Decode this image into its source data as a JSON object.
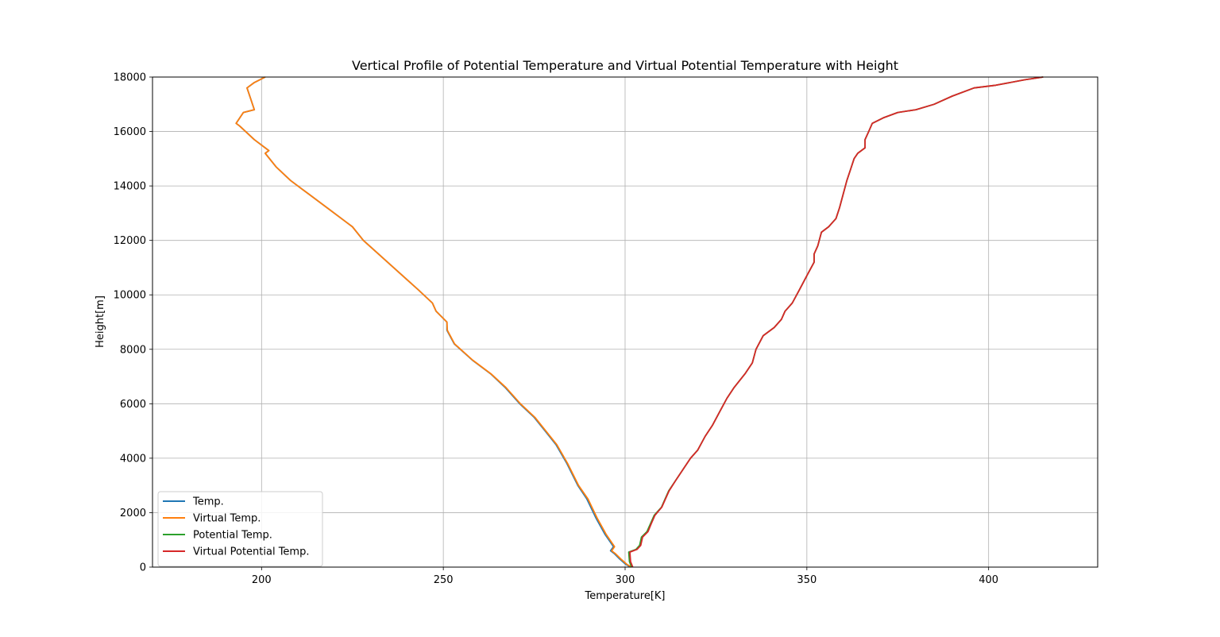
{
  "chart_data": {
    "type": "line",
    "title": "Vertical Profile of Potential Temperature and Virtual Potential Temperature with Height",
    "xlabel": "Temperature[K]",
    "ylabel": "Height[m]",
    "xlim": [
      170,
      430
    ],
    "ylim": [
      0,
      18000
    ],
    "xticks": [
      200,
      250,
      300,
      350,
      400
    ],
    "yticks": [
      0,
      2000,
      4000,
      6000,
      8000,
      10000,
      12000,
      14000,
      16000,
      18000
    ],
    "grid": true,
    "legend_position": "lower-left",
    "series": [
      {
        "name": "Temp.",
        "color": "#1f77b4",
        "points": [
          [
            301.5,
            0
          ],
          [
            300.2,
            100
          ],
          [
            298.5,
            300
          ],
          [
            297,
            500
          ],
          [
            296,
            600
          ],
          [
            296.8,
            750
          ],
          [
            294.5,
            1200
          ],
          [
            292,
            1800
          ],
          [
            289.5,
            2500
          ],
          [
            287,
            3000
          ],
          [
            284,
            3800
          ],
          [
            281,
            4500
          ],
          [
            278,
            5000
          ],
          [
            275,
            5500
          ],
          [
            271,
            6000
          ],
          [
            267,
            6600
          ],
          [
            263,
            7100
          ],
          [
            258,
            7600
          ],
          [
            253,
            8200
          ],
          [
            251,
            8700
          ],
          [
            251,
            9000
          ],
          [
            248,
            9400
          ],
          [
            247,
            9700
          ],
          [
            243,
            10200
          ],
          [
            238,
            10800
          ],
          [
            233,
            11400
          ],
          [
            228,
            12000
          ],
          [
            225,
            12500
          ],
          [
            223,
            12700
          ],
          [
            218,
            13200
          ],
          [
            213,
            13700
          ],
          [
            208,
            14200
          ],
          [
            204,
            14700
          ],
          [
            201,
            15200
          ],
          [
            202,
            15300
          ],
          [
            198,
            15700
          ],
          [
            194,
            16200
          ],
          [
            193,
            16300
          ],
          [
            195,
            16700
          ],
          [
            198,
            16800
          ],
          [
            197,
            17200
          ],
          [
            196,
            17600
          ],
          [
            198,
            17800
          ],
          [
            201,
            18000
          ]
        ]
      },
      {
        "name": "Virtual Temp.",
        "color": "#ff7f0e",
        "points": [
          [
            301.8,
            0
          ],
          [
            300.5,
            100
          ],
          [
            298.8,
            300
          ],
          [
            297.3,
            500
          ],
          [
            296.3,
            600
          ],
          [
            297.1,
            750
          ],
          [
            294.8,
            1200
          ],
          [
            292.3,
            1800
          ],
          [
            289.8,
            2500
          ],
          [
            287.2,
            3000
          ],
          [
            284.2,
            3800
          ],
          [
            281.2,
            4500
          ],
          [
            278.2,
            5000
          ],
          [
            275.2,
            5500
          ],
          [
            271.2,
            6000
          ],
          [
            267.2,
            6600
          ],
          [
            263.1,
            7100
          ],
          [
            258.1,
            7600
          ],
          [
            253.1,
            8200
          ],
          [
            251.1,
            8700
          ],
          [
            251,
            9000
          ],
          [
            248,
            9400
          ],
          [
            247,
            9700
          ],
          [
            243,
            10200
          ],
          [
            238,
            10800
          ],
          [
            233,
            11400
          ],
          [
            228,
            12000
          ],
          [
            225,
            12500
          ],
          [
            223,
            12700
          ],
          [
            218,
            13200
          ],
          [
            213,
            13700
          ],
          [
            208,
            14200
          ],
          [
            204,
            14700
          ],
          [
            201,
            15200
          ],
          [
            202,
            15300
          ],
          [
            198,
            15700
          ],
          [
            194,
            16200
          ],
          [
            193,
            16300
          ],
          [
            195,
            16700
          ],
          [
            198,
            16800
          ],
          [
            197,
            17200
          ],
          [
            196,
            17600
          ],
          [
            198,
            17800
          ],
          [
            201,
            18000
          ]
        ]
      },
      {
        "name": "Potential Temp.",
        "color": "#2ca02c",
        "points": [
          [
            301.8,
            0
          ],
          [
            301.2,
            200
          ],
          [
            301,
            550
          ],
          [
            303,
            650
          ],
          [
            304,
            800
          ],
          [
            304.5,
            1100
          ],
          [
            306,
            1300
          ],
          [
            307,
            1600
          ],
          [
            308,
            1900
          ],
          [
            310,
            2200
          ],
          [
            311,
            2500
          ],
          [
            312,
            2800
          ],
          [
            314,
            3200
          ],
          [
            316,
            3600
          ],
          [
            318,
            4000
          ],
          [
            320,
            4300
          ],
          [
            322,
            4800
          ],
          [
            324,
            5200
          ],
          [
            326,
            5700
          ],
          [
            328,
            6200
          ],
          [
            330,
            6600
          ],
          [
            333,
            7100
          ],
          [
            335,
            7500
          ],
          [
            336,
            8000
          ],
          [
            338,
            8500
          ],
          [
            341,
            8800
          ],
          [
            343,
            9100
          ],
          [
            344,
            9400
          ],
          [
            346,
            9700
          ],
          [
            348,
            10200
          ],
          [
            350,
            10700
          ],
          [
            352,
            11200
          ],
          [
            352,
            11500
          ],
          [
            353,
            11800
          ],
          [
            354,
            12300
          ],
          [
            356,
            12500
          ],
          [
            358,
            12800
          ],
          [
            359,
            13200
          ],
          [
            360,
            13700
          ],
          [
            361,
            14200
          ],
          [
            362,
            14600
          ],
          [
            363,
            15000
          ],
          [
            364,
            15200
          ],
          [
            366,
            15400
          ],
          [
            366,
            15700
          ],
          [
            367,
            16000
          ],
          [
            368,
            16300
          ],
          [
            371,
            16500
          ],
          [
            375,
            16700
          ],
          [
            380,
            16800
          ],
          [
            385,
            17000
          ],
          [
            390,
            17300
          ],
          [
            396,
            17600
          ],
          [
            402,
            17700
          ],
          [
            410,
            17900
          ],
          [
            415,
            18000
          ]
        ]
      },
      {
        "name": "Virtual Potential Temp.",
        "color": "#d62728",
        "points": [
          [
            302.1,
            0
          ],
          [
            301.5,
            200
          ],
          [
            301.3,
            550
          ],
          [
            303.3,
            650
          ],
          [
            304.3,
            800
          ],
          [
            304.8,
            1100
          ],
          [
            306.3,
            1300
          ],
          [
            307.2,
            1600
          ],
          [
            308.2,
            1900
          ],
          [
            310.1,
            2200
          ],
          [
            311.1,
            2500
          ],
          [
            312.1,
            2800
          ],
          [
            314,
            3200
          ],
          [
            316,
            3600
          ],
          [
            318,
            4000
          ],
          [
            320,
            4300
          ],
          [
            322,
            4800
          ],
          [
            324,
            5200
          ],
          [
            326,
            5700
          ],
          [
            328,
            6200
          ],
          [
            330,
            6600
          ],
          [
            333,
            7100
          ],
          [
            335,
            7500
          ],
          [
            336,
            8000
          ],
          [
            338,
            8500
          ],
          [
            341,
            8800
          ],
          [
            343,
            9100
          ],
          [
            344,
            9400
          ],
          [
            346,
            9700
          ],
          [
            348,
            10200
          ],
          [
            350,
            10700
          ],
          [
            352,
            11200
          ],
          [
            352,
            11500
          ],
          [
            353,
            11800
          ],
          [
            354,
            12300
          ],
          [
            356,
            12500
          ],
          [
            358,
            12800
          ],
          [
            359,
            13200
          ],
          [
            360,
            13700
          ],
          [
            361,
            14200
          ],
          [
            362,
            14600
          ],
          [
            363,
            15000
          ],
          [
            364,
            15200
          ],
          [
            366,
            15400
          ],
          [
            366,
            15700
          ],
          [
            367,
            16000
          ],
          [
            368,
            16300
          ],
          [
            371,
            16500
          ],
          [
            375,
            16700
          ],
          [
            380,
            16800
          ],
          [
            385,
            17000
          ],
          [
            390,
            17300
          ],
          [
            396,
            17600
          ],
          [
            402,
            17700
          ],
          [
            410,
            17900
          ],
          [
            415,
            18000
          ]
        ]
      }
    ]
  }
}
